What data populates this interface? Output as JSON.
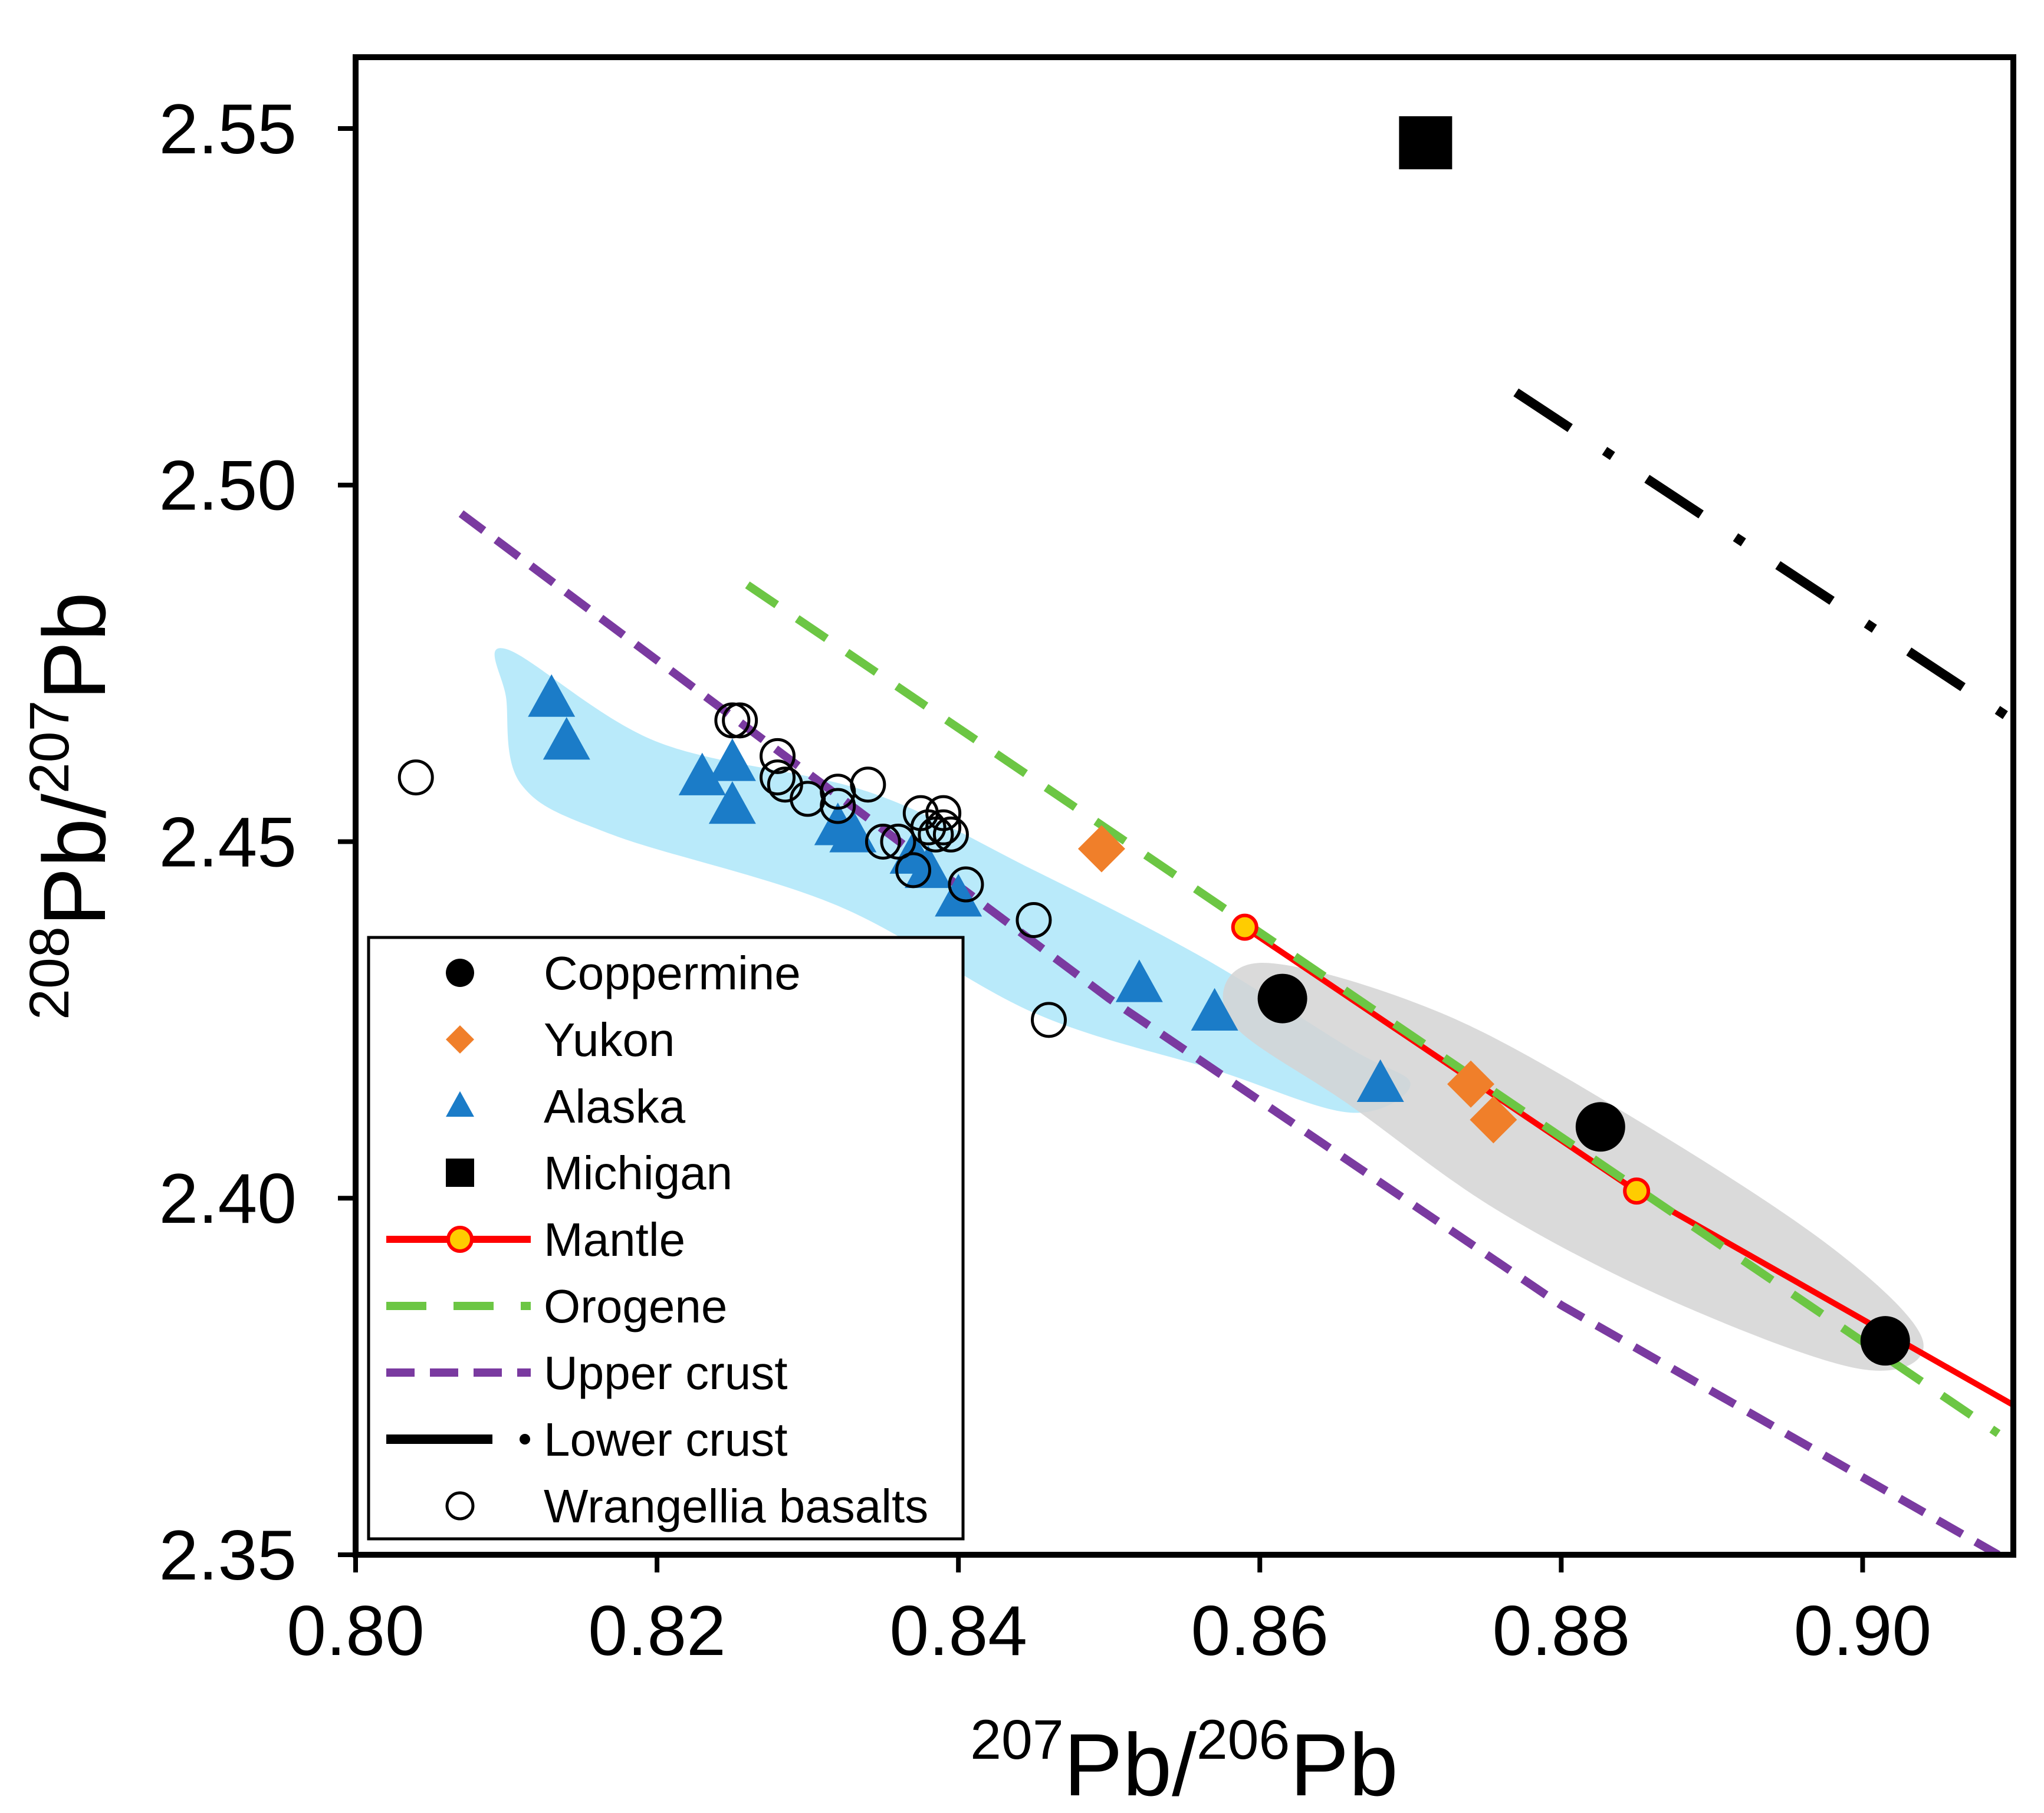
{
  "chart_data": {
    "type": "scatter",
    "xlabel": {
      "sup1": "207",
      "base1": "Pb/",
      "sup2": "206",
      "base2": "Pb"
    },
    "ylabel": {
      "sup1": "208",
      "base1": "Pb/",
      "sup2": "207",
      "base2": "Pb"
    },
    "xlim": [
      0.8,
      0.91
    ],
    "ylim": [
      2.35,
      2.56
    ],
    "xticks": [
      {
        "value": 0.8,
        "label": "0.80"
      },
      {
        "value": 0.82,
        "label": "0.82"
      },
      {
        "value": 0.84,
        "label": "0.84"
      },
      {
        "value": 0.86,
        "label": "0.86"
      },
      {
        "value": 0.88,
        "label": "0.88"
      },
      {
        "value": 0.9,
        "label": "0.90"
      }
    ],
    "yticks": [
      {
        "value": 2.35,
        "label": "2.35"
      },
      {
        "value": 2.4,
        "label": "2.40"
      },
      {
        "value": 2.45,
        "label": "2.45"
      },
      {
        "value": 2.5,
        "label": "2.50"
      },
      {
        "value": 2.55,
        "label": "2.55"
      }
    ],
    "fields": [
      {
        "name": "Alaska field",
        "color": "#7fd8f5",
        "points": [
          [
            0.81,
            2.477
          ],
          [
            0.82,
            2.464
          ],
          [
            0.834,
            2.457
          ],
          [
            0.845,
            2.446
          ],
          [
            0.856,
            2.434
          ],
          [
            0.866,
            2.421
          ],
          [
            0.87,
            2.416
          ],
          [
            0.866,
            2.412
          ],
          [
            0.857,
            2.418
          ],
          [
            0.845,
            2.426
          ],
          [
            0.832,
            2.441
          ],
          [
            0.817,
            2.451
          ],
          [
            0.811,
            2.458
          ],
          [
            0.81,
            2.47
          ]
        ]
      },
      {
        "name": "Coppermine field",
        "color": "#d3d3d3",
        "points": [
          [
            0.86,
            2.433
          ],
          [
            0.872,
            2.426
          ],
          [
            0.885,
            2.411
          ],
          [
            0.898,
            2.393
          ],
          [
            0.904,
            2.38
          ],
          [
            0.9,
            2.376
          ],
          [
            0.888,
            2.385
          ],
          [
            0.876,
            2.398
          ],
          [
            0.866,
            2.413
          ],
          [
            0.858,
            2.425
          ]
        ]
      }
    ],
    "series": [
      {
        "name": "Coppermine",
        "marker": "circle",
        "color": "#000000",
        "x": [
          0.8615,
          0.8826,
          0.9015
        ],
        "y": [
          2.428,
          2.41,
          2.38
        ]
      },
      {
        "name": "Yukon",
        "marker": "diamond",
        "color": "#f07f2a",
        "x": [
          0.8495,
          0.874,
          0.8755
        ],
        "y": [
          2.449,
          2.416,
          2.411
        ]
      },
      {
        "name": "Alaska",
        "marker": "triangle",
        "color": "#1b7cc8",
        "x": [
          0.813,
          0.814,
          0.823,
          0.825,
          0.825,
          0.832,
          0.833,
          0.837,
          0.838,
          0.84,
          0.852,
          0.857,
          0.868
        ],
        "y": [
          2.47,
          2.464,
          2.459,
          2.461,
          2.455,
          2.452,
          2.451,
          2.448,
          2.446,
          2.442,
          2.43,
          2.426,
          2.416
        ]
      },
      {
        "name": "Michigan",
        "marker": "square",
        "color": "#000000",
        "x": [
          0.871
        ],
        "y": [
          2.548
        ]
      },
      {
        "name": "Wrangellia basalts",
        "marker": "open-circle",
        "color": "#000000",
        "x": [
          0.804,
          0.825,
          0.8255,
          0.828,
          0.828,
          0.8285,
          0.83,
          0.832,
          0.832,
          0.834,
          0.835,
          0.836,
          0.837,
          0.8375,
          0.838,
          0.8385,
          0.839,
          0.839,
          0.8395,
          0.8405,
          0.845,
          0.846
        ],
        "y": [
          2.459,
          2.467,
          2.467,
          2.462,
          2.459,
          2.458,
          2.456,
          2.457,
          2.455,
          2.458,
          2.45,
          2.45,
          2.446,
          2.454,
          2.452,
          2.451,
          2.452,
          2.454,
          2.451,
          2.444,
          2.439,
          2.425
        ]
      }
    ],
    "lines": [
      {
        "name": "Mantle",
        "color": "#ff0000",
        "style": "solid-with-markers",
        "marker_color": "#ffcc00",
        "x": [
          0.859,
          0.885,
          0.91
        ],
        "y": [
          2.438,
          2.401,
          2.371
        ],
        "marker_index": [
          0,
          1
        ]
      },
      {
        "name": "Orogene",
        "color": "#6cc644",
        "style": "dashed",
        "x": [
          0.826,
          0.909
        ],
        "y": [
          2.486,
          2.367
        ]
      },
      {
        "name": "Upper crust",
        "color": "#7a3aa0",
        "style": "dashed",
        "x": [
          0.807,
          0.85,
          0.88,
          0.909
        ],
        "y": [
          2.496,
          2.428,
          2.385,
          2.35
        ]
      },
      {
        "name": "Lower crust",
        "color": "#000000",
        "style": "dash-dot",
        "x": [
          0.877,
          0.91
        ],
        "y": [
          2.513,
          2.467
        ]
      }
    ],
    "legend": {
      "position": "bottom-left",
      "entries": [
        {
          "label": "Coppermine",
          "symbol": "circle"
        },
        {
          "label": "Yukon",
          "symbol": "diamond"
        },
        {
          "label": "Alaska",
          "symbol": "triangle"
        },
        {
          "label": "Michigan",
          "symbol": "square"
        },
        {
          "label": "Mantle",
          "symbol": "mantle-line"
        },
        {
          "label": "Orogene",
          "symbol": "orogene-line"
        },
        {
          "label": "Upper crust",
          "symbol": "upper-crust-line"
        },
        {
          "label": "Lower crust",
          "symbol": "lower-crust-line"
        },
        {
          "label": "Wrangellia basalts",
          "symbol": "open-circle"
        }
      ]
    }
  }
}
